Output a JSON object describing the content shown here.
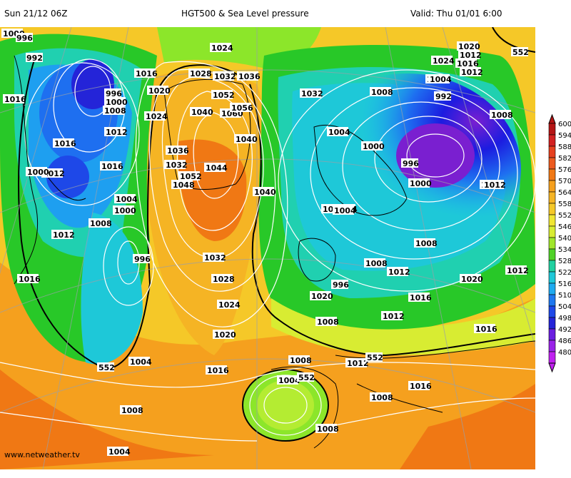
{
  "header": {
    "left": "Sun 21/12 06Z",
    "center": "HGT500 & Sea Level pressure",
    "right": "Valid: Thu 01/01  6:00"
  },
  "credit": "www.netweather.tv",
  "colors": {
    "deep_purple": "#7a1fd0",
    "purple": "#8a2be2",
    "blue_dark": "#1c1ce0",
    "blue": "#1e6ff0",
    "cyan": "#1eb4f0",
    "teal": "#20d0b0",
    "green": "#28c828",
    "light_green": "#8ce62a",
    "yellow": "#f0f032",
    "gold": "#f5c828",
    "orange": "#f5a01e",
    "dark_orange": "#f07814",
    "red_orange": "#e8501e",
    "red": "#d82020"
  },
  "pressure_labels": [
    "1000",
    "996",
    "992",
    "1016",
    "1020",
    "1028",
    "1032",
    "1036",
    "1024",
    "1032",
    "1052",
    "1040",
    "1060",
    "1056",
    "1040",
    "1036",
    "1032",
    "1052",
    "1044",
    "1048",
    "1040",
    "1016",
    "1004",
    "1000",
    "1008",
    "1012",
    "1016",
    "996",
    "1004",
    "1008",
    "1000",
    "996",
    "1020",
    "1024",
    "1016",
    "1012",
    "1032",
    "1024",
    "1008",
    "1004",
    "1012",
    "1016",
    "1012",
    "1020",
    "1004",
    "1000",
    "996",
    "1012",
    "1008",
    "1004",
    "1000",
    "992",
    "1004",
    "1000",
    "1012",
    "1008",
    "1012",
    "1016",
    "1020",
    "1016",
    "1012",
    "1008",
    "1008",
    "1004",
    "1008",
    "1012",
    "1008",
    "1032",
    "1028",
    "1024",
    "1020",
    "1016",
    "1016",
    "1008",
    "996",
    "1004",
    "1008",
    "1020",
    "1016",
    "1012",
    "1000",
    "1004",
    "1012"
  ],
  "contour_labels": [
    "552",
    "552",
    "552",
    "552"
  ],
  "scale": {
    "labels": [
      "600",
      "594",
      "588",
      "582",
      "576",
      "570",
      "564",
      "558",
      "552",
      "546",
      "540",
      "534",
      "528",
      "522",
      "516",
      "510",
      "504",
      "498",
      "492",
      "486",
      "480"
    ],
    "colors": [
      "#b41414",
      "#d22020",
      "#e6401e",
      "#ec5a1e",
      "#f07814",
      "#f5a01e",
      "#f5b424",
      "#f5c828",
      "#f0e632",
      "#d8ec32",
      "#a0e62a",
      "#50d228",
      "#20d0a0",
      "#1ec8d8",
      "#1eaaf0",
      "#1e78f0",
      "#1e48e8",
      "#2424d8",
      "#6a1ee0",
      "#9a22e8",
      "#c020f0"
    ]
  }
}
